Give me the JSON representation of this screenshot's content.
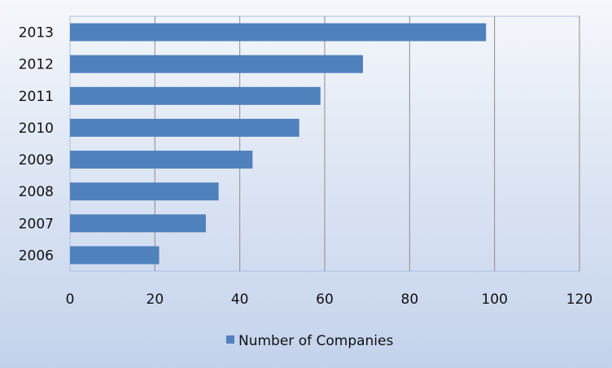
{
  "chart_data": {
    "type": "bar",
    "orientation": "horizontal",
    "categories": [
      "2006",
      "2007",
      "2008",
      "2009",
      "2010",
      "2011",
      "2012",
      "2013"
    ],
    "series": [
      {
        "name": "Number of Companies",
        "values": [
          21,
          32,
          35,
          43,
          54,
          59,
          69,
          98
        ]
      }
    ],
    "xlim": [
      0,
      120
    ],
    "x_ticks": [
      "0",
      "20",
      "40",
      "60",
      "80",
      "100",
      "120"
    ],
    "grid": "vertical",
    "legend_position": "bottom",
    "colors": {
      "bar": "#4F81BD",
      "background_top": "#F5F7FB",
      "background_bottom": "#C3D2EC",
      "grid": "#8C8C8C",
      "plot_border": "#A9C0E4"
    }
  }
}
